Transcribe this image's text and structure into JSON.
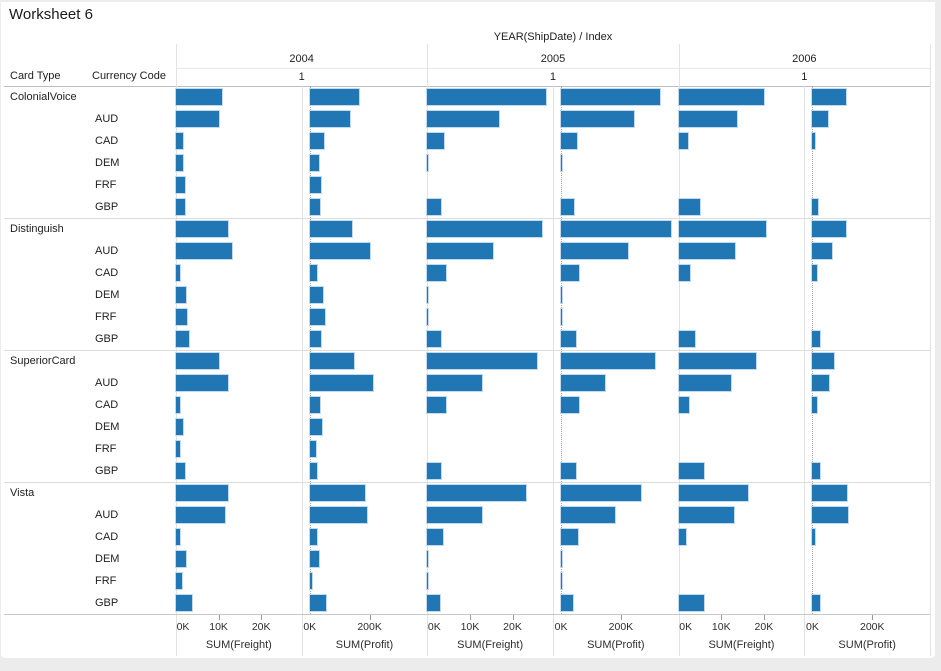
{
  "window": {
    "title": "Worksheet 6"
  },
  "colors": {
    "bar": "#2077b4",
    "bar_halo": "#bed6ea",
    "pane_divider": "#e2e2e2",
    "group_divider": "#dcdcdc",
    "header_rule": "#bdbdbd",
    "axis_rule": "#c8c8c8",
    "chrome": "#ececec"
  },
  "header": {
    "field_label": "YEAR(ShipDate)  /  Index",
    "row_field_1": "Card Type",
    "row_field_2": "Currency Code",
    "years": [
      {
        "label": "2004",
        "index": "1"
      },
      {
        "label": "2005",
        "index": "1"
      },
      {
        "label": "2006",
        "index": "1"
      }
    ]
  },
  "chart_data": {
    "type": "bar",
    "orientation": "horizontal",
    "units": "thousands",
    "legend": "none",
    "grid": "off",
    "columns": [
      {
        "year": "2004",
        "axis": "freight"
      },
      {
        "year": "2004",
        "axis": "profit"
      },
      {
        "year": "2005",
        "axis": "freight"
      },
      {
        "year": "2005",
        "axis": "profit"
      },
      {
        "year": "2006",
        "axis": "freight"
      },
      {
        "year": "2006",
        "axis": "profit"
      }
    ],
    "axes": {
      "freight": {
        "title": "SUM(Freight)",
        "min": 0,
        "max": 29.5,
        "ticks": [
          {
            "label": "0K",
            "value": 0
          },
          {
            "label": "10K",
            "value": 10
          },
          {
            "label": "20K",
            "value": 20
          }
        ]
      },
      "profit": {
        "title": "SUM(Profit)",
        "min": -27,
        "max": 393,
        "ticks": [
          {
            "label": "0K",
            "value": 0
          },
          {
            "label": "200K",
            "value": 200
          }
        ]
      }
    },
    "row_groups": [
      {
        "card_type": "ColonialVoice",
        "rows": [
          {
            "currency": "",
            "values": [
              10.7,
              163,
              27.9,
              329,
              20.0,
              112
            ]
          },
          {
            "currency": "AUD",
            "values": [
              10.2,
              136,
              16.9,
              244,
              13.8,
              51
            ]
          },
          {
            "currency": "CAD",
            "values": [
              1.7,
              47,
              4.0,
              54,
              2.1,
              7
            ]
          },
          {
            "currency": "DEM",
            "values": [
              1.7,
              31,
              0.2,
              2,
              0,
              0
            ]
          },
          {
            "currency": "FRF",
            "values": [
              2.1,
              37,
              0,
              0,
              0,
              0
            ]
          },
          {
            "currency": "GBP",
            "values": [
              2.1,
              34,
              3.3,
              44,
              5.0,
              20
            ]
          }
        ]
      },
      {
        "card_type": "Distinguish",
        "rows": [
          {
            "currency": "",
            "values": [
              12.1,
              142,
              26.9,
              366,
              20.5,
              112
            ]
          },
          {
            "currency": "AUD",
            "values": [
              13.1,
              203,
              15.5,
              224,
              13.3,
              64
            ]
          },
          {
            "currency": "CAD",
            "values": [
              1.0,
              24,
              4.3,
              61,
              2.6,
              17
            ]
          },
          {
            "currency": "DEM",
            "values": [
              2.4,
              44,
              0.2,
              2,
              0,
              0
            ]
          },
          {
            "currency": "FRF",
            "values": [
              2.6,
              51,
              0.2,
              2,
              0,
              0
            ]
          },
          {
            "currency": "GBP",
            "values": [
              3.1,
              37,
              3.3,
              51,
              3.8,
              27
            ]
          }
        ]
      },
      {
        "card_type": "SuperiorCard",
        "rows": [
          {
            "currency": "",
            "values": [
              10.2,
              149,
              25.7,
              315,
              18.1,
              71
            ]
          },
          {
            "currency": "AUD",
            "values": [
              12.1,
              210,
              12.9,
              146,
              12.4,
              54
            ]
          },
          {
            "currency": "CAD",
            "values": [
              1.0,
              34,
              4.3,
              61,
              2.4,
              14
            ]
          },
          {
            "currency": "DEM",
            "values": [
              1.7,
              41,
              0,
              0,
              0,
              0
            ]
          },
          {
            "currency": "FRF",
            "values": [
              1.0,
              20,
              0,
              0,
              0,
              0
            ]
          },
          {
            "currency": "GBP",
            "values": [
              2.1,
              24,
              3.3,
              51,
              6.0,
              27
            ]
          }
        ]
      },
      {
        "card_type": "Vista",
        "rows": [
          {
            "currency": "",
            "values": [
              12.1,
              186,
              23.1,
              268,
              16.2,
              115
            ]
          },
          {
            "currency": "AUD",
            "values": [
              11.4,
              193,
              12.9,
              180,
              13.1,
              119
            ]
          },
          {
            "currency": "CAD",
            "values": [
              1.0,
              24,
              3.6,
              58,
              1.7,
              7
            ]
          },
          {
            "currency": "DEM",
            "values": [
              2.4,
              31,
              0.2,
              2,
              0,
              0
            ]
          },
          {
            "currency": "FRF",
            "values": [
              1.4,
              7,
              0.2,
              2,
              0,
              0
            ]
          },
          {
            "currency": "GBP",
            "values": [
              3.8,
              54,
              2.9,
              41,
              6.0,
              24
            ]
          }
        ]
      }
    ]
  }
}
